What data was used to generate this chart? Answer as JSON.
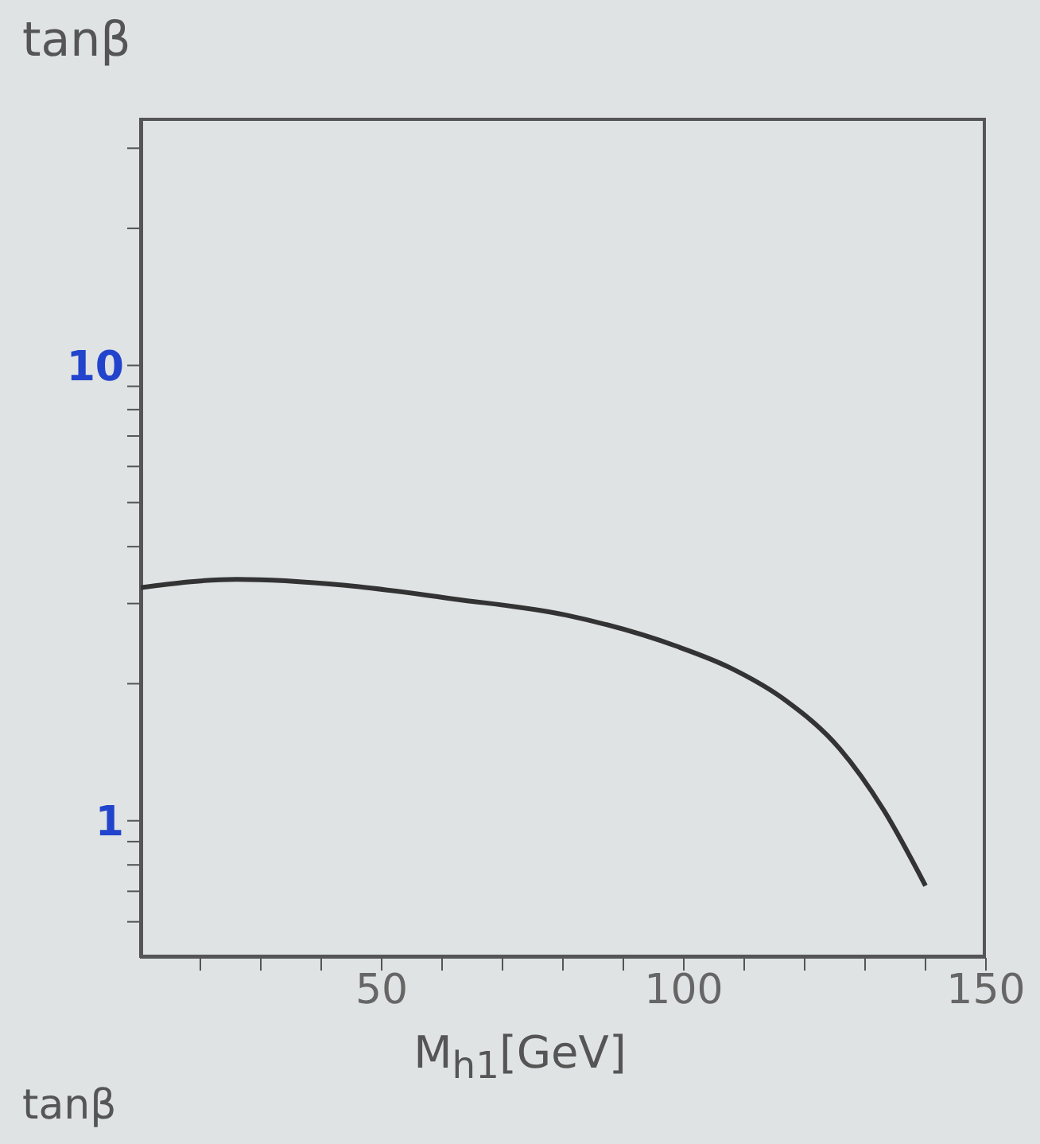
{
  "chart_data": {
    "type": "line",
    "ylabel": "tanβ",
    "xlabel": "M$_{h1}$[GeV]",
    "annotations": [
      "tanβ"
    ],
    "log": "y",
    "grid": false,
    "legend": false,
    "marker": "none",
    "line_style": "solid",
    "xlim": [
      10,
      150
    ],
    "xticks": [
      {
        "value": 20,
        "label": null
      },
      {
        "value": 30,
        "label": null
      },
      {
        "value": 40,
        "label": null
      },
      50,
      {
        "value": 60,
        "label": null
      },
      {
        "value": 70,
        "label": null
      },
      {
        "value": 80,
        "label": null
      },
      {
        "value": 90,
        "label": null
      },
      100,
      {
        "value": 110,
        "label": null
      },
      {
        "value": 120,
        "label": null
      },
      {
        "value": 130,
        "label": null
      },
      {
        "value": 140,
        "label": null
      },
      150
    ],
    "ylim": [
      0.5,
      35
    ],
    "yticks": [
      {
        "value": 0.6,
        "label": null
      },
      {
        "value": 0.7,
        "label": null
      },
      {
        "value": 0.8,
        "label": null
      },
      {
        "value": 0.9,
        "label": null
      },
      1,
      {
        "value": 2,
        "label": null
      },
      {
        "value": 3,
        "label": null
      },
      {
        "value": 4,
        "label": null
      },
      {
        "value": 5,
        "label": null
      },
      {
        "value": 6,
        "label": null
      },
      {
        "value": 7,
        "label": null
      },
      {
        "value": 8,
        "label": null
      },
      {
        "value": 9,
        "label": null
      },
      10,
      {
        "value": 20,
        "label": null
      },
      {
        "value": 30,
        "label": null
      }
    ],
    "series": [
      {
        "color": "#333333",
        "x": [
          10,
          26,
          44,
          62,
          80.5,
          98.7,
          107.6,
          116.8,
          125.8,
          133,
          140
        ],
        "values": [
          3.25,
          3.39,
          3.29,
          3.07,
          2.83,
          2.42,
          2.17,
          1.84,
          1.44,
          1.06,
          0.72
        ]
      }
    ]
  }
}
